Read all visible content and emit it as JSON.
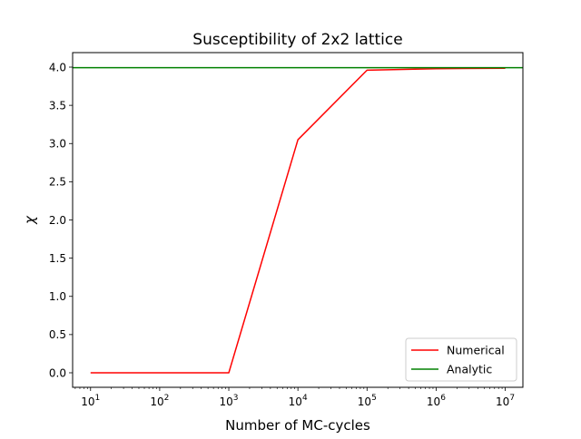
{
  "chart_data": {
    "type": "line",
    "title": "Susceptibility of 2x2 lattice",
    "xlabel": "Number of MC-cycles",
    "ylabel": "χ",
    "xscale": "log",
    "xlim": [
      5.5,
      18000000
    ],
    "ylim": [
      -0.19,
      4.19
    ],
    "x_ticks": [
      {
        "value": 10,
        "base": "10",
        "exp": "1"
      },
      {
        "value": 100,
        "base": "10",
        "exp": "2"
      },
      {
        "value": 1000,
        "base": "10",
        "exp": "3"
      },
      {
        "value": 10000,
        "base": "10",
        "exp": "4"
      },
      {
        "value": 100000,
        "base": "10",
        "exp": "5"
      },
      {
        "value": 1000000,
        "base": "10",
        "exp": "6"
      },
      {
        "value": 10000000,
        "base": "10",
        "exp": "7"
      }
    ],
    "y_ticks": [
      {
        "value": 0.0,
        "label": "0.0"
      },
      {
        "value": 0.5,
        "label": "0.5"
      },
      {
        "value": 1.0,
        "label": "1.0"
      },
      {
        "value": 1.5,
        "label": "1.5"
      },
      {
        "value": 2.0,
        "label": "2.0"
      },
      {
        "value": 2.5,
        "label": "2.5"
      },
      {
        "value": 3.0,
        "label": "3.0"
      },
      {
        "value": 3.5,
        "label": "3.5"
      },
      {
        "value": 4.0,
        "label": "4.0"
      }
    ],
    "series": [
      {
        "name": "Numerical",
        "color": "#ff0000",
        "x": [
          10,
          100,
          1000,
          10000,
          100000,
          1000000,
          10000000
        ],
        "y": [
          0.0,
          0.0,
          0.0,
          3.05,
          3.96,
          3.98,
          3.986
        ]
      },
      {
        "name": "Analytic",
        "color": "#008000",
        "type": "hline",
        "y": 3.993
      }
    ],
    "legend_position": "bottom-right",
    "grid": false
  }
}
